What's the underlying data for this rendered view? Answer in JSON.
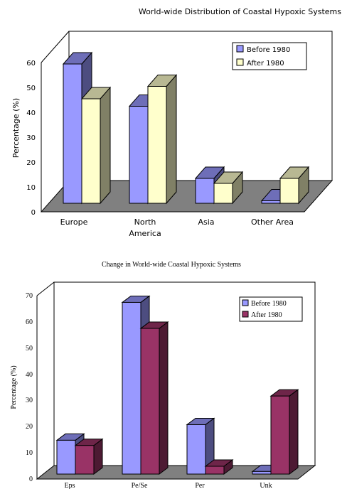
{
  "chart_data": [
    {
      "type": "bar",
      "title": "World-wide Distribution of Coastal Hypoxic Systems",
      "xlabel": "",
      "ylabel": "Percentage (%)",
      "ylim": [
        0,
        60
      ],
      "yticks": [
        "0",
        "10",
        "20",
        "30",
        "40",
        "50",
        "60"
      ],
      "categories": [
        "Europe",
        "North America",
        "Asia",
        "Other Area"
      ],
      "category_lines": [
        [
          "Europe"
        ],
        [
          "North",
          "America"
        ],
        [
          "Asia"
        ],
        [
          "Other Area"
        ]
      ],
      "series": [
        {
          "name": "Before 1980",
          "values": [
            56,
            39,
            10,
            1
          ],
          "color": "#9999ff"
        },
        {
          "name": "After 1980",
          "values": [
            42,
            47,
            8,
            10
          ],
          "color": "#ffffcc"
        }
      ],
      "legend_position": "top-right",
      "grid": false,
      "style": "3d"
    },
    {
      "type": "bar",
      "title": "Change in World-wide Coastal Hypoxic Systems",
      "xlabel": "",
      "ylabel": "Percentage (%)",
      "ylim": [
        0,
        70
      ],
      "yticks": [
        "0",
        "10",
        "20",
        "30",
        "40",
        "50",
        "60",
        "70"
      ],
      "categories": [
        "Eps",
        "Pe/Se",
        "Per",
        "Unk"
      ],
      "category_lines": [
        [
          "Eps"
        ],
        [
          "Pe/Se"
        ],
        [
          "Per"
        ],
        [
          "Unk"
        ]
      ],
      "series": [
        {
          "name": "Before 1980",
          "values": [
            13,
            66,
            19,
            1
          ],
          "color": "#9999ff"
        },
        {
          "name": "After 1980",
          "values": [
            11,
            56,
            3,
            30
          ],
          "color": "#993366"
        }
      ],
      "legend_position": "top-right",
      "grid": false,
      "style": "3d"
    }
  ]
}
